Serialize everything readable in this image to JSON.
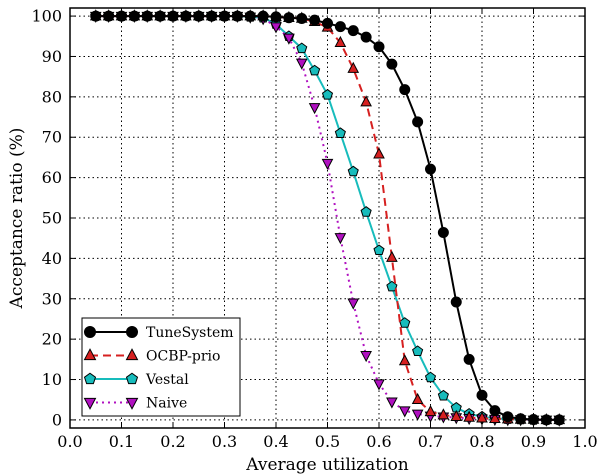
{
  "chart_data": {
    "type": "line",
    "title": "",
    "xlabel": "Average utilization",
    "ylabel": "Acceptance ratio (%)",
    "xlim": [
      0.0,
      1.0
    ],
    "ylim": [
      -2,
      102
    ],
    "xticks": [
      0.0,
      0.1,
      0.2,
      0.3,
      0.4,
      0.5,
      0.6,
      0.7,
      0.8,
      0.9,
      1.0
    ],
    "xtick_labels": [
      "0.0",
      "0.1",
      "0.2",
      "0.3",
      "0.4",
      "0.5",
      "0.6",
      "0.7",
      "0.8",
      "0.9",
      "1.0"
    ],
    "yticks": [
      0,
      10,
      20,
      30,
      40,
      50,
      60,
      70,
      80,
      90,
      100
    ],
    "ytick_labels": [
      "0",
      "10",
      "20",
      "30",
      "40",
      "50",
      "60",
      "70",
      "80",
      "90",
      "100"
    ],
    "grid": true,
    "legend_position": "bottom-left",
    "series": [
      {
        "name": "TuneSystem",
        "color": "#000000",
        "line_style": "solid",
        "marker": "circle",
        "x": [
          0.05,
          0.075,
          0.1,
          0.125,
          0.15,
          0.175,
          0.2,
          0.225,
          0.25,
          0.275,
          0.3,
          0.325,
          0.35,
          0.375,
          0.4,
          0.425,
          0.45,
          0.475,
          0.5,
          0.525,
          0.55,
          0.575,
          0.6,
          0.625,
          0.65,
          0.675,
          0.7,
          0.725,
          0.75,
          0.775,
          0.8,
          0.825,
          0.85,
          0.875,
          0.9,
          0.925,
          0.95
        ],
        "y": [
          100,
          100,
          100,
          100,
          100,
          100,
          100,
          100,
          100,
          100,
          100,
          100,
          100,
          100,
          99.8,
          99.6,
          99.4,
          99.0,
          98.2,
          97.4,
          96.4,
          94.8,
          92.4,
          88.1,
          81.8,
          73.8,
          62.1,
          46.4,
          29.2,
          15.0,
          6.1,
          2.3,
          0.8,
          0.3,
          0.1,
          0.0,
          0.0
        ]
      },
      {
        "name": "OCBP-prio",
        "color": "#d62020",
        "line_style": "dashed",
        "marker": "triangle-up",
        "x": [
          0.05,
          0.075,
          0.1,
          0.125,
          0.15,
          0.175,
          0.2,
          0.225,
          0.25,
          0.275,
          0.3,
          0.325,
          0.35,
          0.375,
          0.4,
          0.425,
          0.45,
          0.475,
          0.5,
          0.525,
          0.55,
          0.575,
          0.6,
          0.625,
          0.65,
          0.675,
          0.7,
          0.725,
          0.75,
          0.775,
          0.8,
          0.825,
          0.85,
          0.875,
          0.9,
          0.925,
          0.95
        ],
        "y": [
          100,
          100,
          100,
          100,
          100,
          100,
          100,
          100,
          100,
          100,
          100,
          100,
          100,
          100,
          99.8,
          99.6,
          99.4,
          98.6,
          97.2,
          93.4,
          87.0,
          78.7,
          65.8,
          40.2,
          14.6,
          5.0,
          2.0,
          1.2,
          0.8,
          0.6,
          0.4,
          0.3,
          0.2,
          0.1,
          0.1,
          0.0,
          0.0
        ]
      },
      {
        "name": "Vestal",
        "color": "#17bcbc",
        "line_style": "solid",
        "marker": "pentagon",
        "x": [
          0.05,
          0.075,
          0.1,
          0.125,
          0.15,
          0.175,
          0.2,
          0.225,
          0.25,
          0.275,
          0.3,
          0.325,
          0.35,
          0.375,
          0.4,
          0.425,
          0.45,
          0.475,
          0.5,
          0.525,
          0.55,
          0.575,
          0.6,
          0.625,
          0.65,
          0.675,
          0.7,
          0.725,
          0.75,
          0.775,
          0.8,
          0.825,
          0.85,
          0.875,
          0.9,
          0.925,
          0.95
        ],
        "y": [
          100,
          100,
          100,
          100,
          100,
          100,
          100,
          100,
          100,
          100,
          100,
          100,
          99.8,
          99.6,
          98.0,
          95.0,
          92.0,
          86.5,
          80.5,
          71.0,
          61.5,
          51.5,
          42.0,
          33.0,
          24.0,
          17.0,
          10.5,
          6.0,
          3.0,
          1.5,
          0.8,
          0.4,
          0.2,
          0.1,
          0.0,
          0.0,
          0.0
        ]
      },
      {
        "name": "Naive",
        "color": "#b010c0",
        "line_style": "dotted",
        "marker": "triangle-down",
        "x": [
          0.05,
          0.075,
          0.1,
          0.125,
          0.15,
          0.175,
          0.2,
          0.225,
          0.25,
          0.275,
          0.3,
          0.325,
          0.35,
          0.375,
          0.4,
          0.425,
          0.45,
          0.475,
          0.5,
          0.525,
          0.55,
          0.575,
          0.6,
          0.625,
          0.65,
          0.675,
          0.7,
          0.725,
          0.75,
          0.775,
          0.8,
          0.825,
          0.85,
          0.875,
          0.9,
          0.925,
          0.95
        ],
        "y": [
          100,
          100,
          100,
          100,
          100,
          100,
          100,
          100,
          100,
          100,
          100,
          100,
          99.8,
          99.4,
          97.4,
          94.6,
          88.4,
          77.4,
          63.6,
          45.2,
          29.0,
          16.0,
          9.0,
          4.5,
          2.3,
          1.5,
          1.0,
          0.8,
          0.6,
          0.4,
          0.3,
          0.2,
          0.1,
          0.1,
          0.0,
          0.0,
          0.0
        ]
      }
    ]
  }
}
